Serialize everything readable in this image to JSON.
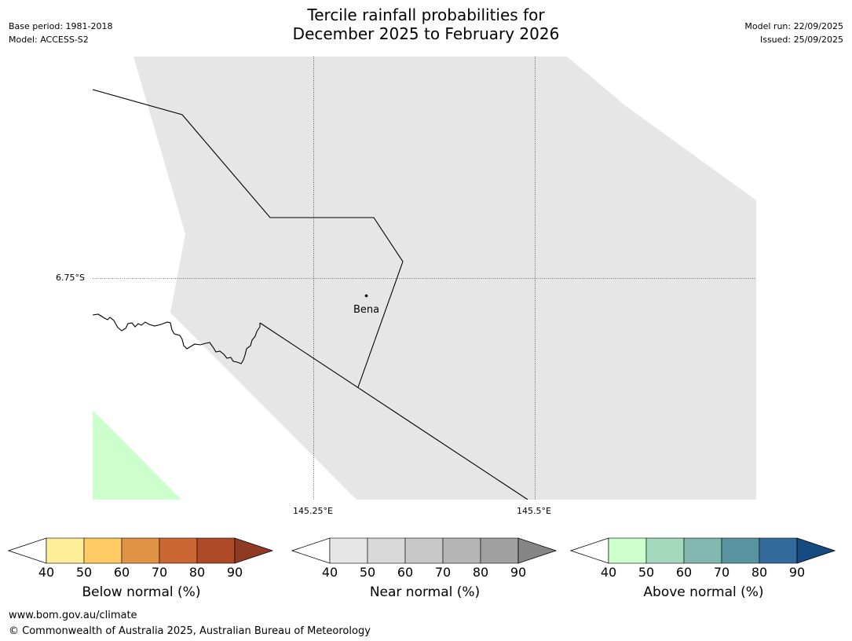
{
  "header": {
    "title_line1": "Tercile rainfall probabilities for",
    "title_line2": "December 2025 to February 2026",
    "base_period": "Base period: 1981-2018",
    "model": "Model: ACCESS-S2",
    "model_run": "Model run: 22/09/2025",
    "issued": "Issued: 25/09/2025"
  },
  "map": {
    "lat_label": "6.75°S",
    "lon_labels": [
      "145.25°E",
      "145.5°E"
    ],
    "place": "Bena",
    "colors": {
      "near_normal_fill": "#e6e6e6",
      "above_normal_fill": "#ccffcc",
      "boundary": "#000000"
    }
  },
  "colorbars": [
    {
      "label": "Below normal (%)",
      "ticks": [
        "40",
        "50",
        "60",
        "70",
        "80",
        "90"
      ],
      "colors": [
        "#ffee99",
        "#fecb65",
        "#e09245",
        "#cc6633",
        "#ae4a27",
        "#8f3a22"
      ]
    },
    {
      "label": "Near normal (%)",
      "ticks": [
        "40",
        "50",
        "60",
        "70",
        "80",
        "90"
      ],
      "colors": [
        "#e6e6e6",
        "#d9d9d9",
        "#c8c8c8",
        "#b5b5b5",
        "#a0a0a0",
        "#868686"
      ]
    },
    {
      "label": "Above normal (%)",
      "ticks": [
        "40",
        "50",
        "60",
        "70",
        "80",
        "90"
      ],
      "colors": [
        "#ccffcc",
        "#a3d9bc",
        "#80b8b0",
        "#5a93a0",
        "#336a9c",
        "#154b80"
      ]
    }
  ],
  "footer": {
    "url": "www.bom.gov.au/climate",
    "copyright": "© Commonwealth of Australia 2025, Australian Bureau of Meteorology"
  }
}
